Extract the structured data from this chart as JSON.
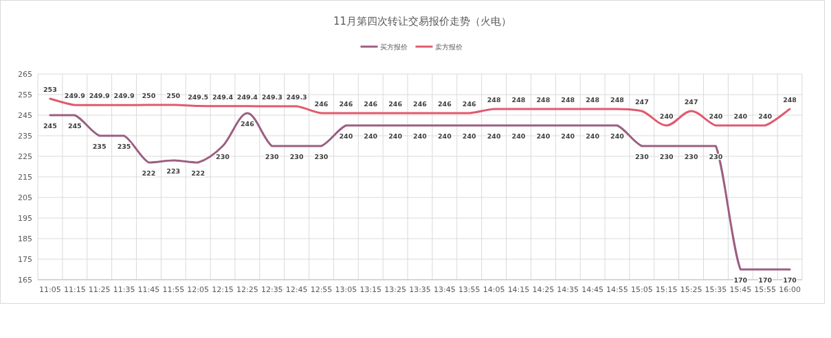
{
  "chart_data": {
    "type": "line",
    "title": "11月第四次转让交易报价走势（火电）",
    "categories": [
      "11:05",
      "11:15",
      "11:25",
      "11:35",
      "11:45",
      "11:55",
      "12:05",
      "12:15",
      "12:25",
      "12:35",
      "12:45",
      "12:55",
      "13:05",
      "13:15",
      "13:25",
      "13:35",
      "13:45",
      "13:55",
      "14:05",
      "14:15",
      "14:25",
      "14:35",
      "14:45",
      "14:55",
      "15:05",
      "15:15",
      "15:25",
      "15:35",
      "15:45",
      "15:55",
      "16:00"
    ],
    "series": [
      {
        "name": "买方报价",
        "color": "#9b5f80",
        "values": [
          245,
          245,
          235,
          235,
          222,
          223,
          222,
          230,
          246,
          230,
          230,
          230,
          240,
          240,
          240,
          240,
          240,
          240,
          240,
          240,
          240,
          240,
          240,
          240,
          230,
          230,
          230,
          230,
          170,
          170,
          170
        ]
      },
      {
        "name": "卖方报价",
        "color": "#e05a6e",
        "values": [
          253,
          249.9,
          249.9,
          249.9,
          250,
          250,
          249.5,
          249.4,
          249.4,
          249.3,
          249.3,
          246,
          246,
          246,
          246,
          246,
          246,
          246,
          248,
          248,
          248,
          248,
          248,
          248,
          247,
          240,
          247,
          240,
          240,
          240,
          248
        ]
      }
    ],
    "ylim": [
      165,
      265
    ],
    "yticks": [
      165,
      175,
      185,
      195,
      205,
      215,
      225,
      235,
      245,
      255,
      265
    ],
    "grid": true,
    "legend": "top",
    "data_labels": true,
    "marker": "none",
    "line_style": "solid"
  }
}
